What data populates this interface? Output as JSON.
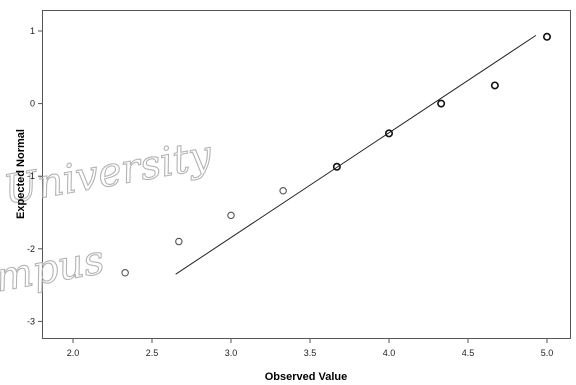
{
  "chart_data": {
    "type": "scatter",
    "title": "",
    "xlabel": "Observed Value",
    "ylabel": "Expected Normal",
    "xlim": [
      1.8,
      5.15
    ],
    "ylim": [
      -3.3,
      1.3
    ],
    "x_ticks": [
      "2.0",
      "2.5",
      "3.0",
      "3.5",
      "4.0",
      "4.5",
      "5.0"
    ],
    "x_tick_values": [
      2.0,
      2.5,
      3.0,
      3.5,
      4.0,
      4.5,
      5.0
    ],
    "y_ticks": [
      "1",
      "0",
      "-1",
      "-2",
      "-3"
    ],
    "y_tick_values": [
      1,
      0,
      -1,
      -2,
      -3
    ],
    "grid": false,
    "points": [
      {
        "x": 2.33,
        "y": -2.33
      },
      {
        "x": 2.67,
        "y": -1.9
      },
      {
        "x": 3.0,
        "y": -1.54
      },
      {
        "x": 3.33,
        "y": -1.2
      },
      {
        "x": 3.67,
        "y": -0.87
      },
      {
        "x": 4.0,
        "y": -0.41
      },
      {
        "x": 4.33,
        "y": 0.0
      },
      {
        "x": 4.67,
        "y": 0.25
      },
      {
        "x": 5.0,
        "y": 0.92
      }
    ],
    "reference_line": {
      "x1": 2.65,
      "y1": -2.35,
      "x2": 4.93,
      "y2": 0.94
    },
    "watermark": [
      "University",
      "mpus"
    ]
  }
}
